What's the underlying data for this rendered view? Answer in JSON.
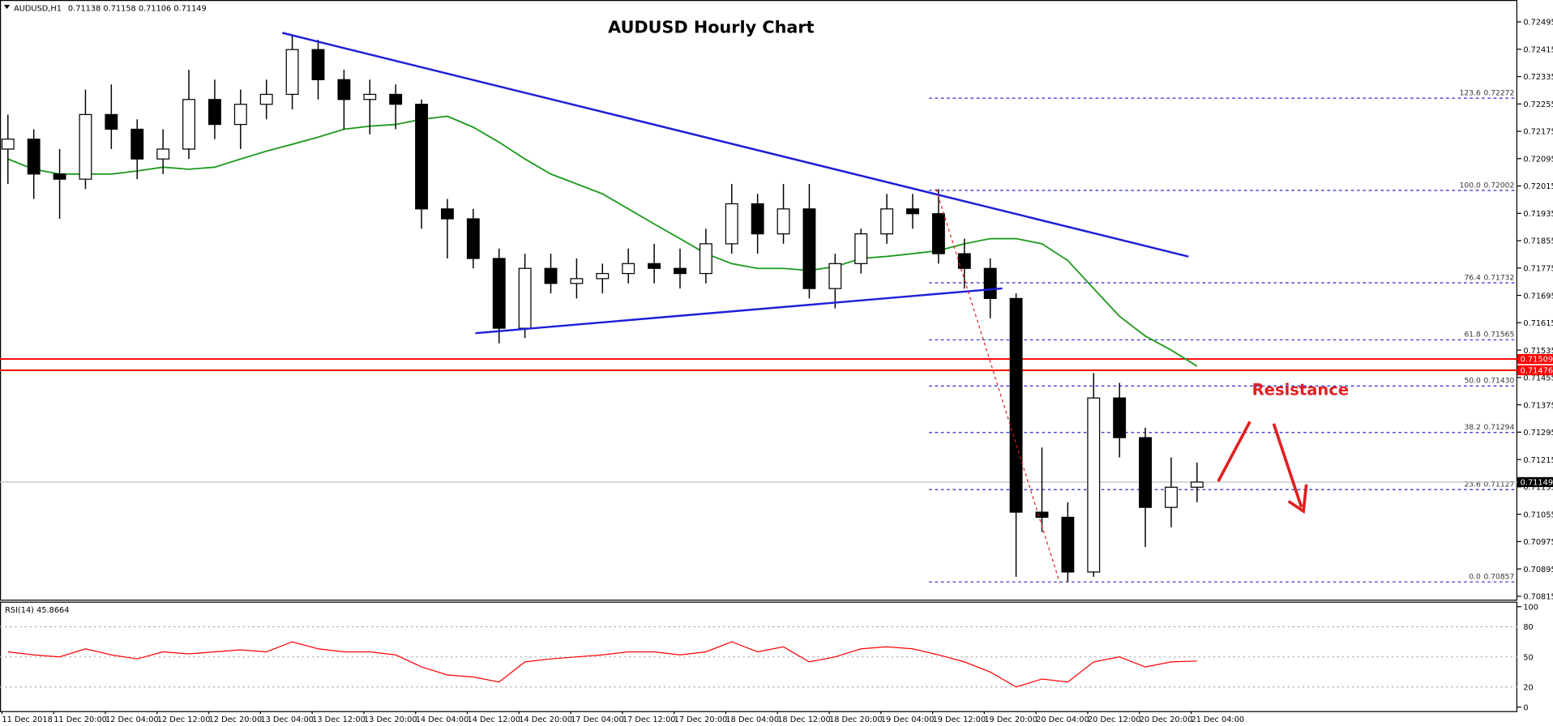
{
  "chart_data": {
    "type": "candlestick",
    "title": "AUDUSD Hourly Chart",
    "symbol": "AUDUSD,H1",
    "current_bar": [
      0.71138,
      0.71158,
      0.71106,
      0.71149
    ],
    "annotation": "Resistance",
    "x": [
      "11 Dec 2018",
      null,
      "11 Dec 20:00",
      null,
      "12 Dec 04:00",
      null,
      "12 Dec 12:00",
      null,
      "12 Dec 20:00",
      null,
      "13 Dec 04:00",
      null,
      "13 Dec 12:00",
      null,
      "13 Dec 20:00",
      null,
      "14 Dec 04:00",
      null,
      "14 Dec 12:00",
      null,
      "14 Dec 20:00",
      null,
      "17 Dec 04:00",
      null,
      "17 Dec 12:00",
      null,
      "17 Dec 20:00",
      null,
      "18 Dec 04:00",
      null,
      "18 Dec 12:00",
      null,
      "18 Dec 20:00",
      null,
      "19 Dec 04:00",
      null,
      "19 Dec 12:00",
      null,
      "19 Dec 20:00",
      null,
      "20 Dec 04:00",
      null,
      "20 Dec 12:00",
      null,
      "20 Dec 20:00",
      null,
      "21 Dec 04:00"
    ],
    "open": [
      0.72123,
      0.72152,
      0.7205,
      0.72035,
      0.72224,
      0.72181,
      0.72094,
      0.72123,
      0.72268,
      0.72195,
      0.72254,
      0.72283,
      0.72414,
      0.72326,
      0.72268,
      0.72283,
      0.72254,
      0.71948,
      0.71919,
      0.71803,
      0.71599,
      0.71774,
      0.7173,
      0.71744,
      0.71759,
      0.71788,
      0.71774,
      0.71759,
      0.71846,
      0.71963,
      0.71875,
      0.71948,
      0.71715,
      0.71788,
      0.71875,
      0.71948,
      0.71934,
      0.71817,
      0.71774,
      0.71686,
      0.71061,
      0.71046,
      0.70886,
      0.71395,
      0.71279,
      0.71075,
      0.71134
    ],
    "high": [
      0.72224,
      0.72181,
      0.72123,
      0.72297,
      0.72312,
      0.7221,
      0.72181,
      0.72355,
      0.72326,
      0.72297,
      0.72326,
      0.72457,
      0.72443,
      0.72355,
      0.72326,
      0.72312,
      0.72268,
      0.71977,
      0.71948,
      0.71832,
      0.71817,
      0.71817,
      0.71803,
      0.71788,
      0.71832,
      0.71846,
      0.71832,
      0.7189,
      0.72021,
      0.71992,
      0.72021,
      0.72021,
      0.71817,
      0.7189,
      0.71992,
      0.71992,
      0.72006,
      0.71861,
      0.71803,
      0.71701,
      0.7125,
      0.7109,
      0.71468,
      0.71439,
      0.71308,
      0.71221,
      0.71206
    ],
    "low": [
      0.72021,
      0.71977,
      0.71919,
      0.72006,
      0.72123,
      0.72035,
      0.7205,
      0.72094,
      0.72152,
      0.72123,
      0.7221,
      0.72239,
      0.72268,
      0.72181,
      0.72166,
      0.72181,
      0.7189,
      0.71803,
      0.71774,
      0.71555,
      0.7157,
      0.71701,
      0.71686,
      0.71701,
      0.7173,
      0.7173,
      0.71715,
      0.7173,
      0.71817,
      0.71817,
      0.71846,
      0.71686,
      0.71657,
      0.71759,
      0.71846,
      0.7189,
      0.71788,
      0.71715,
      0.71628,
      0.70872,
      0.71003,
      0.70857,
      0.70872,
      0.71221,
      0.70959,
      0.71017,
      0.7109
    ],
    "close": [
      0.72152,
      0.7205,
      0.72035,
      0.72224,
      0.72181,
      0.72094,
      0.72123,
      0.72268,
      0.72195,
      0.72254,
      0.72283,
      0.72414,
      0.72326,
      0.72268,
      0.72283,
      0.72254,
      0.71948,
      0.71919,
      0.71803,
      0.71599,
      0.71774,
      0.7173,
      0.71744,
      0.71759,
      0.71788,
      0.71774,
      0.71759,
      0.71846,
      0.71963,
      0.71875,
      0.71948,
      0.71715,
      0.71788,
      0.71875,
      0.71948,
      0.71934,
      0.71817,
      0.71774,
      0.71686,
      0.71061,
      0.71046,
      0.70886,
      0.71395,
      0.71279,
      0.71075,
      0.71134,
      0.71149
    ],
    "bull_color": "#ffffff",
    "bear_color": "#000000",
    "moving_average": {
      "color": "#1e9a1e",
      "values": [
        0.72094,
        0.72064,
        0.7205,
        0.7205,
        0.7205,
        0.72059,
        0.7207,
        0.72064,
        0.7207,
        0.72094,
        0.72117,
        0.72137,
        0.72158,
        0.72181,
        0.7219,
        0.72195,
        0.7221,
        0.72219,
        0.72187,
        0.72143,
        0.72094,
        0.7205,
        0.72021,
        0.71992,
        0.71948,
        0.71904,
        0.71861,
        0.71817,
        0.71788,
        0.71774,
        0.71774,
        0.71768,
        0.71779,
        0.71803,
        0.71809,
        0.71817,
        0.71826,
        0.71846,
        0.71861,
        0.71861,
        0.71846,
        0.71797,
        0.71715,
        0.71634,
        0.71576,
        0.71535,
        0.71488
      ]
    },
    "ylim": [
      0.70805,
      0.72559
    ],
    "yticks": [
      0.72495,
      0.72415,
      0.72335,
      0.72255,
      0.72175,
      0.72095,
      0.72015,
      0.71935,
      0.71855,
      0.71775,
      0.71695,
      0.71615,
      0.71535,
      0.71455,
      0.71375,
      0.71295,
      0.71215,
      0.71135,
      0.71055,
      0.70975,
      0.70895,
      0.70815
    ],
    "resistance_lines": [
      {
        "value": 0.71509,
        "color": "#ff0000"
      },
      {
        "value": 0.71476,
        "color": "#ff0000"
      }
    ],
    "current_price_color": "#000000",
    "fib_levels": [
      {
        "ratio": "123.6",
        "price": 0.72272
      },
      {
        "ratio": "100.0",
        "price": 0.72002
      },
      {
        "ratio": "76.4",
        "price": 0.71732
      },
      {
        "ratio": "61.8",
        "price": 0.71565
      },
      {
        "ratio": "50.0",
        "price": {
          "value": 0.7143,
          "label": "0.71430"
        }
      },
      {
        "ratio": "38.2",
        "price": 0.71294
      },
      {
        "ratio": "23.6",
        "price": 0.71127
      },
      {
        "ratio": "0.0",
        "price": 0.70857
      }
    ],
    "fib_color": "#2828d0",
    "rsi": {
      "name": "RSI(14)",
      "color": "#ff0000",
      "ylim": [
        0,
        100
      ],
      "yticks": [
        100,
        80,
        50,
        20,
        0
      ],
      "values": [
        55,
        52,
        50,
        58,
        52,
        48,
        55,
        53,
        55,
        57,
        55,
        65,
        58,
        55,
        55,
        52,
        40,
        32,
        30,
        25,
        45,
        48,
        50,
        52,
        55,
        55,
        52,
        55,
        65,
        55,
        60,
        45,
        50,
        58,
        60,
        58,
        52,
        45,
        35,
        20,
        28,
        25,
        45,
        50,
        40,
        45,
        45.8664
      ]
    }
  }
}
